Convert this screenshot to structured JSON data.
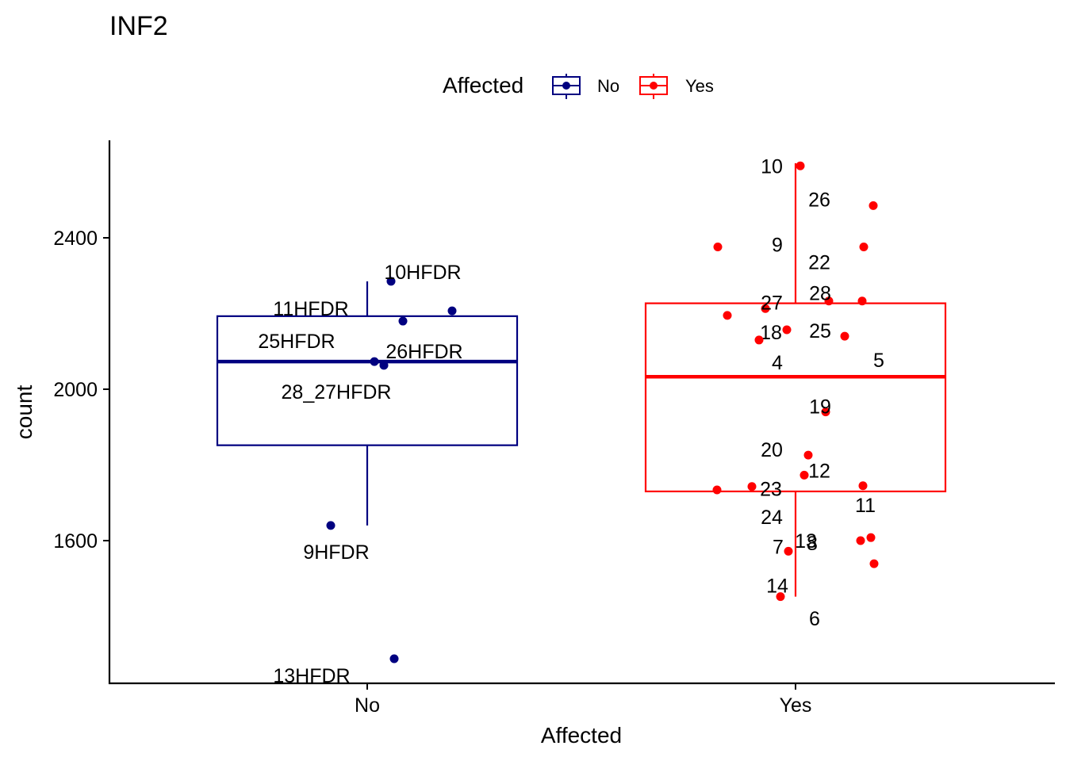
{
  "chart_data": {
    "type": "boxplot",
    "title": "INF2",
    "xlabel": "Affected",
    "ylabel": "count",
    "ylim": [
      1220,
      2650
    ],
    "yticks": [
      1600,
      2000,
      2400
    ],
    "categories": [
      "No",
      "Yes"
    ],
    "grid": false,
    "legend": {
      "title": "Affected",
      "position": "top",
      "entries": [
        {
          "label": "No",
          "color": "#000080"
        },
        {
          "label": "Yes",
          "color": "#ff0000"
        }
      ]
    },
    "boxes": [
      {
        "category": "No",
        "whisker_low": 1640,
        "q1": 1852,
        "median": 2073,
        "q3": 2193,
        "whisker_high": 2285
      },
      {
        "category": "Yes",
        "whisker_low": 1452,
        "q1": 1730,
        "median": 2033,
        "q3": 2227,
        "whisker_high": 2597
      }
    ],
    "points": [
      {
        "group": "No",
        "label": "10HFDR",
        "y": 2285
      },
      {
        "group": "No",
        "label": "11HFDR",
        "y": 2207
      },
      {
        "group": "No",
        "label": "25HFDR",
        "y": 2180
      },
      {
        "group": "No",
        "label": "26HFDR",
        "y": 2073
      },
      {
        "group": "No",
        "label": "28_27HFDR",
        "y": 2063
      },
      {
        "group": "No",
        "label": "9HFDR",
        "y": 1640
      },
      {
        "group": "No",
        "label": "13HFDR",
        "y": 1288
      },
      {
        "group": "Yes",
        "label": "10",
        "y": 2590
      },
      {
        "group": "Yes",
        "label": "26",
        "y": 2485
      },
      {
        "group": "Yes",
        "label": "9",
        "y": 2376
      },
      {
        "group": "Yes",
        "label": "22",
        "y": 2376
      },
      {
        "group": "Yes",
        "label": "27",
        "y": 2213
      },
      {
        "group": "Yes",
        "label": "28",
        "y": 2233
      },
      {
        "group": "Yes",
        "label": "28",
        "y": 2233
      },
      {
        "group": "Yes",
        "label": "25",
        "y": 2140
      },
      {
        "group": "Yes",
        "label": "18",
        "y": 2157
      },
      {
        "group": "Yes",
        "label": "4",
        "y": 2130
      },
      {
        "group": "Yes",
        "label": "5",
        "y": 2195
      },
      {
        "group": "Yes",
        "label": "19",
        "y": 1940
      },
      {
        "group": "Yes",
        "label": "20",
        "y": 1826
      },
      {
        "group": "Yes",
        "label": "12",
        "y": 1773
      },
      {
        "group": "Yes",
        "label": "23",
        "y": 1743
      },
      {
        "group": "Yes",
        "label": "11",
        "y": 1745
      },
      {
        "group": "Yes",
        "label": "24",
        "y": 1734
      },
      {
        "group": "Yes",
        "label": "8",
        "y": 1600
      },
      {
        "group": "Yes",
        "label": "7",
        "y": 1572
      },
      {
        "group": "Yes",
        "label": "13",
        "y": 1608
      },
      {
        "group": "Yes",
        "label": "14",
        "y": 1452
      },
      {
        "group": "Yes",
        "label": "6",
        "y": 1539
      }
    ]
  }
}
